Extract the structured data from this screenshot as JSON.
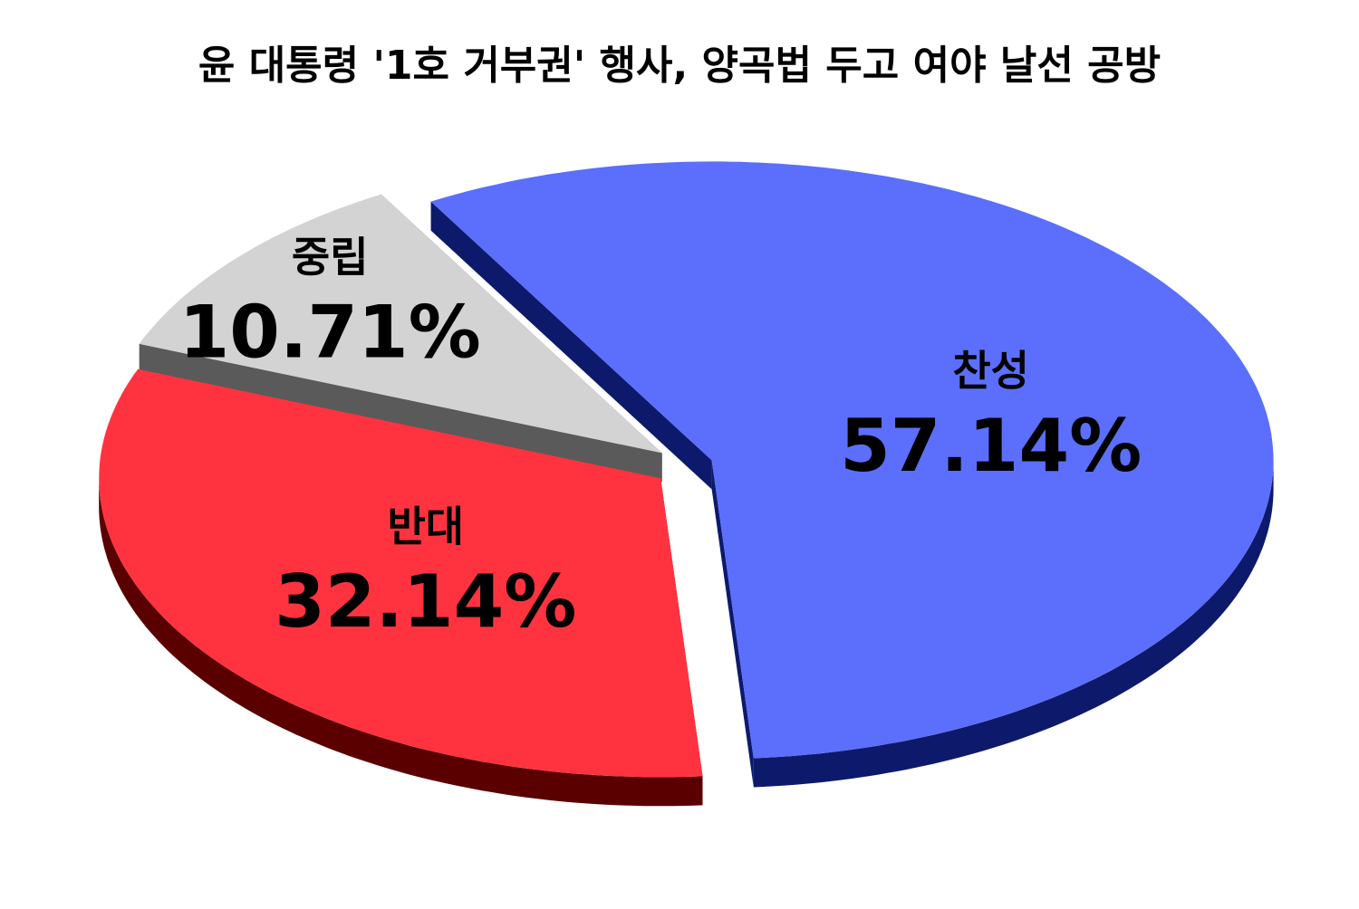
{
  "chart_data": {
    "type": "pie",
    "title": "윤 대통령 '1호 거부권' 행사, 양곡법 두고 여야 날선 공방",
    "categories": [
      "찬성",
      "반대",
      "중립"
    ],
    "values": [
      57.14,
      32.14,
      10.71
    ],
    "value_labels": [
      "57.14%",
      "32.14%",
      "10.71%"
    ],
    "colors": [
      "#5b6ffc",
      "#ff3340",
      "#d3d3d3"
    ],
    "side_colors": [
      "#0d1a6b",
      "#5a0000",
      "#5a5a5a"
    ]
  }
}
